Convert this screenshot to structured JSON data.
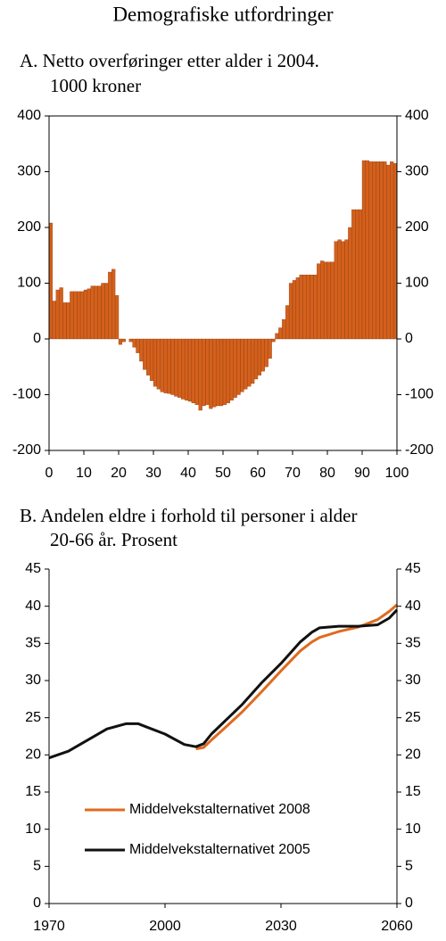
{
  "title": "Demografiske utfordringer",
  "chart_data": [
    {
      "type": "bar",
      "title": "A.  Netto overføringer etter alder i 2004.",
      "subtitle": "1000 kroner",
      "x": [
        0,
        1,
        2,
        3,
        4,
        5,
        6,
        7,
        8,
        9,
        10,
        11,
        12,
        13,
        14,
        15,
        16,
        17,
        18,
        19,
        20,
        21,
        22,
        23,
        24,
        25,
        26,
        27,
        28,
        29,
        30,
        31,
        32,
        33,
        34,
        35,
        36,
        37,
        38,
        39,
        40,
        41,
        42,
        43,
        44,
        45,
        46,
        47,
        48,
        49,
        50,
        51,
        52,
        53,
        54,
        55,
        56,
        57,
        58,
        59,
        60,
        61,
        62,
        63,
        64,
        65,
        66,
        67,
        68,
        69,
        70,
        71,
        72,
        73,
        74,
        75,
        76,
        77,
        78,
        79,
        80,
        81,
        82,
        83,
        84,
        85,
        86,
        87,
        88,
        89,
        90,
        91,
        92,
        93,
        94,
        95,
        96,
        97,
        98,
        99
      ],
      "values": [
        208,
        68,
        88,
        92,
        65,
        65,
        85,
        85,
        85,
        85,
        88,
        90,
        95,
        95,
        95,
        100,
        100,
        120,
        125,
        78,
        -10,
        -5,
        0,
        -5,
        -15,
        -25,
        -40,
        -55,
        -65,
        -75,
        -85,
        -90,
        -95,
        -97,
        -98,
        -100,
        -103,
        -105,
        -108,
        -110,
        -112,
        -115,
        -118,
        -128,
        -120,
        -118,
        -125,
        -122,
        -120,
        -120,
        -118,
        -115,
        -110,
        -105,
        -100,
        -95,
        -90,
        -85,
        -80,
        -72,
        -65,
        -58,
        -50,
        -35,
        -5,
        10,
        20,
        35,
        60,
        100,
        105,
        110,
        115,
        115,
        115,
        115,
        115,
        135,
        140,
        138,
        138,
        138,
        175,
        178,
        175,
        178,
        200,
        232,
        232,
        232,
        320,
        320,
        318,
        318,
        318,
        318,
        318,
        312,
        318,
        315
      ],
      "color": "#d4601c",
      "xlim": [
        0,
        100
      ],
      "xticks": [
        0,
        10,
        20,
        30,
        40,
        50,
        60,
        70,
        80,
        90,
        100
      ],
      "ylim": [
        -200,
        400
      ],
      "yticks": [
        -200,
        -100,
        0,
        100,
        200,
        300,
        400
      ]
    },
    {
      "type": "line",
      "title": "B.  Andelen eldre i forhold til personer i alder",
      "subtitle": "20-66 år. Prosent",
      "x": [
        1970,
        1975,
        1980,
        1985,
        1990,
        1993,
        1995,
        2000,
        2005,
        2008,
        2010,
        2012,
        2015,
        2020,
        2025,
        2030,
        2035,
        2038,
        2040,
        2045,
        2050,
        2055,
        2058,
        2060
      ],
      "series": [
        {
          "name": "Middelvekstalternativet 2008",
          "color": "#e06a1e",
          "values": [
            null,
            null,
            null,
            null,
            null,
            null,
            null,
            null,
            null,
            20.8,
            21.0,
            22.0,
            23.4,
            25.8,
            28.5,
            31.3,
            34.0,
            35.2,
            35.8,
            36.6,
            37.2,
            38.2,
            39.3,
            40.2
          ]
        },
        {
          "name": "Middelvekstalternativet 2005",
          "color": "#111111",
          "values": [
            19.6,
            20.5,
            22.0,
            23.5,
            24.2,
            24.2,
            23.8,
            22.8,
            21.4,
            21.1,
            21.5,
            22.8,
            24.3,
            26.8,
            29.7,
            32.3,
            35.2,
            36.5,
            37.1,
            37.3,
            37.3,
            37.5,
            38.4,
            39.5
          ]
        }
      ],
      "xlim": [
        1970,
        2060
      ],
      "xticks": [
        1970,
        2000,
        2030,
        2060
      ],
      "ylim": [
        0,
        45
      ],
      "yticks": [
        0,
        5,
        10,
        15,
        20,
        25,
        30,
        35,
        40,
        45
      ]
    }
  ]
}
